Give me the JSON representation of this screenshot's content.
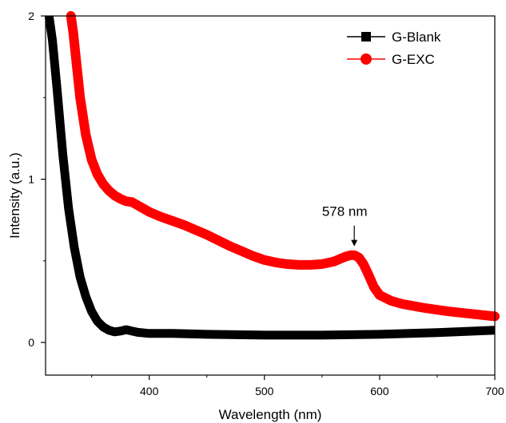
{
  "chart_data": {
    "type": "line",
    "title": "",
    "xlabel": "Wavelength (nm)",
    "ylabel": "Intensity (a.u.)",
    "xlim": [
      310,
      700
    ],
    "ylim": [
      -0.2,
      2
    ],
    "xticks": [
      400,
      500,
      600,
      700
    ],
    "yticks": [
      0,
      1,
      2
    ],
    "xtick_labels": [
      "400",
      "500",
      "600",
      "700"
    ],
    "ytick_labels": [
      "0",
      "1",
      "2"
    ],
    "grid": false,
    "legend_position": "top-right",
    "annotations": [
      {
        "text": "578 nm",
        "x": 578,
        "y": 0.53,
        "arrow": true
      }
    ],
    "series": [
      {
        "name": "G-Blank",
        "color": "#000000",
        "marker": "square",
        "x": [
          313,
          316,
          320,
          325,
          330,
          335,
          340,
          345,
          350,
          355,
          360,
          365,
          370,
          375,
          380,
          385,
          390,
          400,
          420,
          450,
          500,
          550,
          600,
          650,
          700
        ],
        "y": [
          2.0,
          1.85,
          1.55,
          1.15,
          0.82,
          0.58,
          0.4,
          0.28,
          0.19,
          0.13,
          0.095,
          0.075,
          0.065,
          0.07,
          0.078,
          0.07,
          0.062,
          0.055,
          0.055,
          0.05,
          0.045,
          0.045,
          0.05,
          0.06,
          0.075
        ]
      },
      {
        "name": "G-EXC",
        "color": "#ff0000",
        "marker": "circle",
        "x": [
          332,
          334,
          337,
          340,
          345,
          350,
          355,
          360,
          365,
          370,
          375,
          380,
          385,
          390,
          395,
          400,
          410,
          420,
          430,
          440,
          450,
          460,
          470,
          480,
          490,
          500,
          510,
          520,
          530,
          540,
          550,
          560,
          565,
          570,
          575,
          578,
          582,
          586,
          590,
          595,
          600,
          610,
          620,
          640,
          660,
          680,
          700
        ],
        "y": [
          2.0,
          1.9,
          1.7,
          1.5,
          1.27,
          1.12,
          1.03,
          0.97,
          0.93,
          0.9,
          0.88,
          0.865,
          0.86,
          0.84,
          0.82,
          0.8,
          0.77,
          0.745,
          0.72,
          0.69,
          0.66,
          0.625,
          0.59,
          0.56,
          0.53,
          0.505,
          0.49,
          0.48,
          0.475,
          0.475,
          0.48,
          0.495,
          0.51,
          0.525,
          0.535,
          0.535,
          0.52,
          0.48,
          0.42,
          0.34,
          0.29,
          0.255,
          0.235,
          0.21,
          0.19,
          0.175,
          0.16
        ]
      }
    ]
  }
}
